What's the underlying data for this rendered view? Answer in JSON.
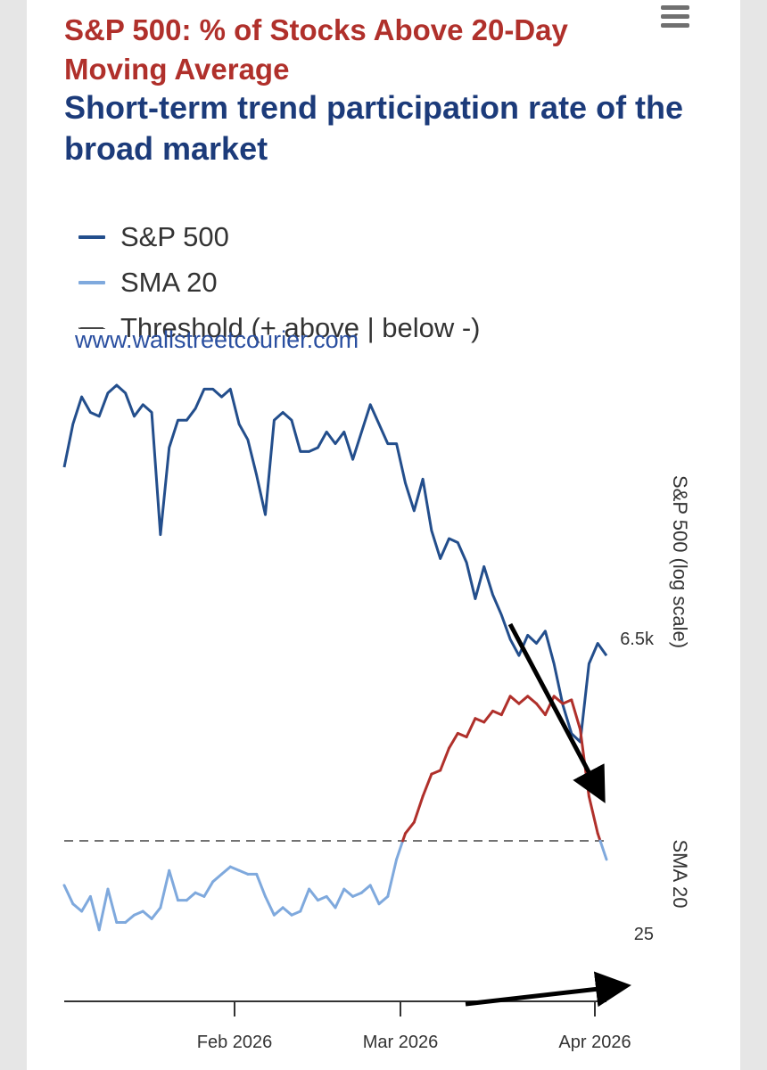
{
  "chart_data": {
    "type": "line",
    "title": "S&P 500: % of Stocks Above 20-Day Moving Average",
    "subtitle": "Short-term trend participation rate of the broad market",
    "legend": [
      {
        "name": "S&P 500",
        "color": "#234e8c",
        "style": "solid"
      },
      {
        "name": "SMA 20",
        "color": "#7fa9dd",
        "style": "solid"
      },
      {
        "name": "Threshold (+ above | below -)",
        "color": "#444444",
        "style": "dashed"
      }
    ],
    "credit": "www.wallstreetcourier.com",
    "x_ticks": [
      "Feb 2026",
      "Mar 2026",
      "Apr 2026"
    ],
    "y_axes": [
      {
        "label": "S&P 500 (log scale)",
        "scale": "log",
        "ticks": [
          "6.5k"
        ]
      },
      {
        "label": "SMA 20",
        "scale": "linear",
        "ticks": [
          "25"
        ]
      }
    ],
    "threshold": 50,
    "colors": {
      "above": "#7fa9dd",
      "below": "#b0302b",
      "spx": "#234e8c"
    },
    "series": [
      {
        "name": "S&P 500",
        "values": [
          6850,
          6905,
          6940,
          6920,
          6915,
          6945,
          6955,
          6945,
          6915,
          6930,
          6920,
          6765,
          6875,
          6910,
          6910,
          6925,
          6950,
          6950,
          6940,
          6950,
          6905,
          6885,
          6840,
          6790,
          6910,
          6920,
          6910,
          6870,
          6870,
          6875,
          6895,
          6880,
          6895,
          6860,
          6895,
          6930,
          6905,
          6880,
          6880,
          6830,
          6795,
          6835,
          6770,
          6735,
          6760,
          6755,
          6730,
          6685,
          6725,
          6690,
          6665,
          6635,
          6615,
          6640,
          6630,
          6645,
          6605,
          6555,
          6520,
          6510,
          6605,
          6630,
          6615
        ]
      },
      {
        "name": "SMA 20",
        "values": [
          62,
          67,
          69,
          65,
          74,
          63,
          72,
          72,
          70,
          69,
          71,
          68,
          58,
          66,
          66,
          64,
          65,
          61,
          59,
          57,
          58,
          59,
          59,
          65,
          70,
          68,
          70,
          69,
          63,
          66,
          65,
          68,
          63,
          65,
          64,
          62,
          67,
          65,
          55,
          48,
          45,
          38,
          32,
          31,
          25,
          21,
          22,
          17,
          18,
          15,
          16,
          11,
          13,
          11,
          13,
          16,
          11,
          13,
          12,
          20,
          38,
          48,
          55
        ]
      }
    ]
  }
}
